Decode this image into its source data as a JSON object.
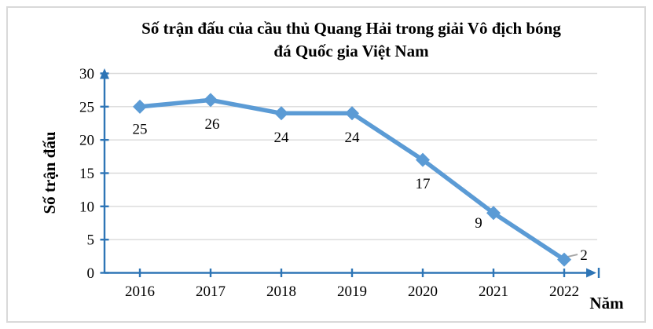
{
  "chart_data": {
    "type": "line",
    "title": "Số trận đấu của cầu thủ Quang Hải trong giải Vô địch bóng\nđá Quốc gia Việt Nam",
    "xlabel": "Năm",
    "ylabel": "Số trận đấu",
    "categories": [
      "2016",
      "2017",
      "2018",
      "2019",
      "2020",
      "2021",
      "2022"
    ],
    "series": [
      {
        "name": "Số trận đấu",
        "values": [
          25,
          26,
          24,
          24,
          17,
          9,
          2
        ]
      }
    ],
    "data_labels": [
      "25",
      "26",
      "24",
      "24",
      "17",
      "9",
      "2"
    ],
    "ylim": [
      0,
      30
    ],
    "ytick_step": 5,
    "yticks": [
      0,
      5,
      10,
      15,
      20,
      25,
      30
    ],
    "grid": "horizontal",
    "legend": "none",
    "colors": {
      "series": "#5B9BD5",
      "axis": "#2E75B6",
      "gridline": "#D9D9D9",
      "leader": "#A6A6A6",
      "text": "#000000",
      "frame_border": "#D9D9D9"
    }
  }
}
